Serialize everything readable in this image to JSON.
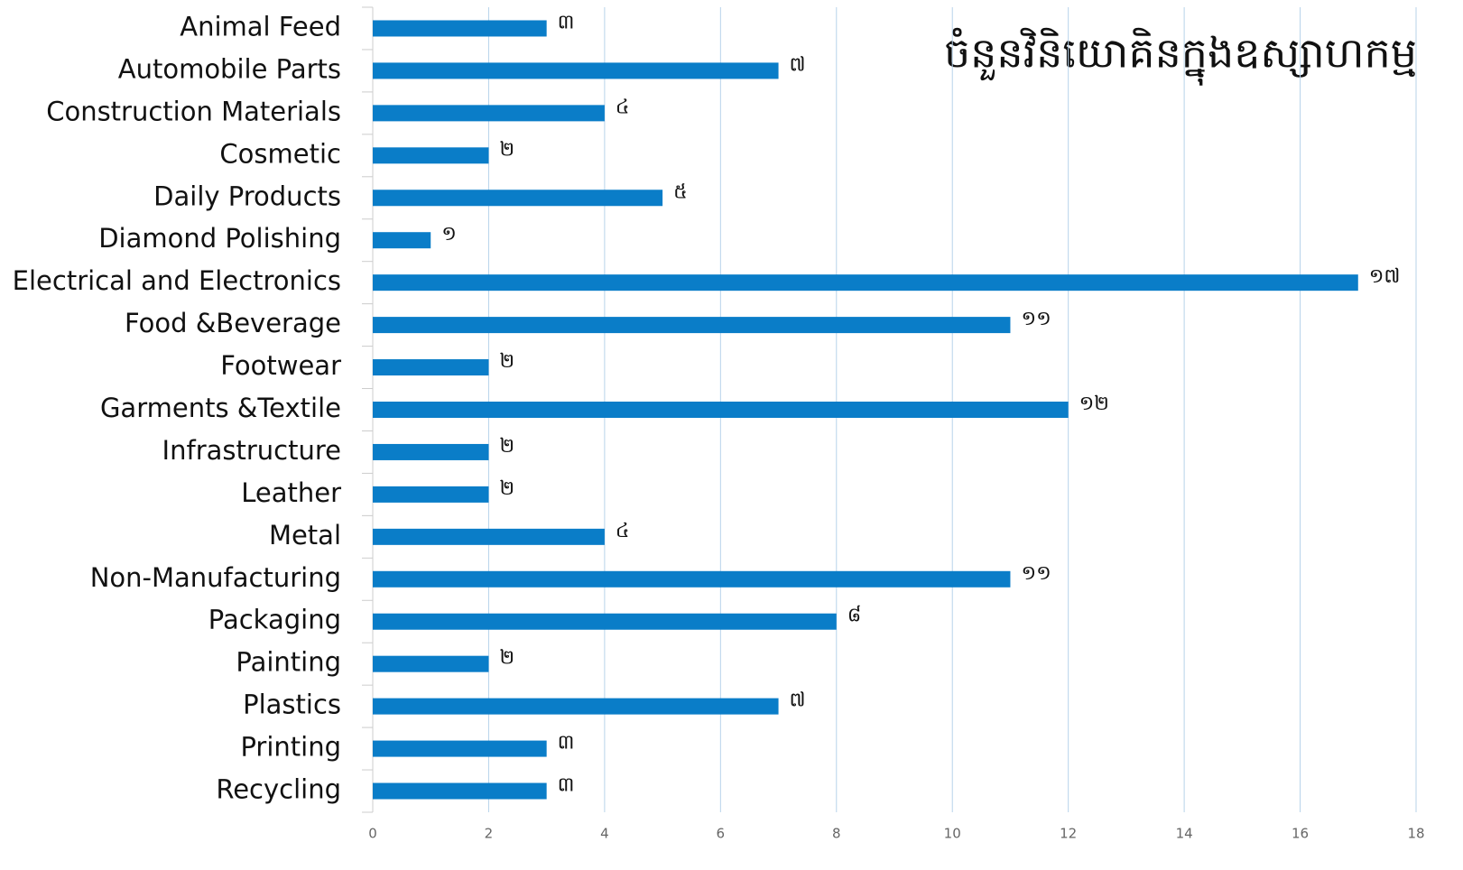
{
  "chart_data": {
    "type": "barh",
    "title": "ចំនួនវិនិយោគិនក្នុងឧស្សាហកម្ម",
    "categories": [
      "Animal Feed",
      "Automobile Parts",
      "Construction Materials",
      "Cosmetic",
      "Daily Products",
      "Diamond Polishing",
      "Electrical and Electronics",
      "Food &Beverage",
      "Footwear",
      "Garments &Textile",
      "Infrastructure",
      "Leather",
      "Metal",
      "Non-Manufacturing",
      "Packaging",
      "Painting",
      "Plastics",
      "Printing",
      "Recycling"
    ],
    "values": [
      3,
      7,
      4,
      2,
      5,
      1,
      17,
      11,
      2,
      12,
      2,
      2,
      4,
      11,
      8,
      2,
      7,
      3,
      3
    ],
    "value_labels": [
      "៣",
      "៧",
      "៤",
      "២",
      "៥",
      "១",
      "១៧",
      "១១",
      "២",
      "១២",
      "២",
      "២",
      "៤",
      "១១",
      "៨",
      "២",
      "៧",
      "៣",
      "៣"
    ],
    "value_label_colors": [
      "#111111",
      "#e02020",
      "#111111",
      "#111111",
      "#111111",
      "#e02020",
      "#e02020",
      "#e02020",
      "#111111",
      "#111111",
      "#111111",
      "#111111",
      "#e02020",
      "#111111",
      "#111111",
      "#111111",
      "#e02020",
      "#111111",
      "#111111"
    ],
    "color": "#0a7dc8",
    "xlim": [
      0,
      18
    ],
    "xticks": [
      0,
      2,
      4,
      6,
      8,
      10,
      12,
      14,
      16,
      18
    ],
    "grid": true
  }
}
